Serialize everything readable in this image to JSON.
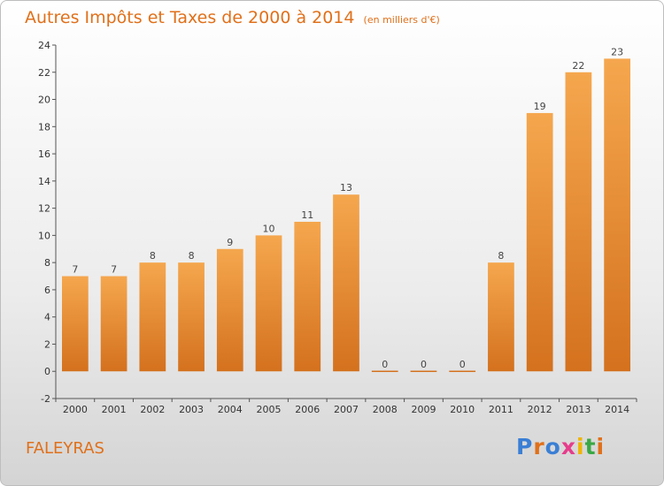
{
  "title": "Autres Impôts et Taxes de 2000 à 2014",
  "subtitle": "(en milliers d'€)",
  "commune": "FALEYRAS",
  "logo": {
    "letters": [
      "P",
      "r",
      "o",
      "x",
      "i",
      "t",
      "i"
    ],
    "colors": [
      "#3a7fd5",
      "#e0701a",
      "#3a7fd5",
      "#e63c8c",
      "#f0b400",
      "#3aa845",
      "#e0701a"
    ]
  },
  "colors": {
    "accent": "#e0701a",
    "bar_top": "#f5a74e",
    "bar_bottom": "#d4711e"
  },
  "chart_data": {
    "type": "bar",
    "title": "Autres Impôts et Taxes de 2000 à 2014",
    "subtitle": "(en milliers d'€)",
    "xlabel": "",
    "ylabel": "",
    "categories": [
      "2000",
      "2001",
      "2002",
      "2003",
      "2004",
      "2005",
      "2006",
      "2007",
      "2008",
      "2009",
      "2010",
      "2011",
      "2012",
      "2013",
      "2014"
    ],
    "values": [
      7,
      7,
      8,
      8,
      9,
      10,
      11,
      13,
      0,
      0,
      0,
      8,
      19,
      22,
      23
    ],
    "ylim": [
      -2,
      24
    ],
    "yticks": [
      -2,
      0,
      2,
      4,
      6,
      8,
      10,
      12,
      14,
      16,
      18,
      20,
      22,
      24
    ],
    "grid": false,
    "legend": "none"
  }
}
